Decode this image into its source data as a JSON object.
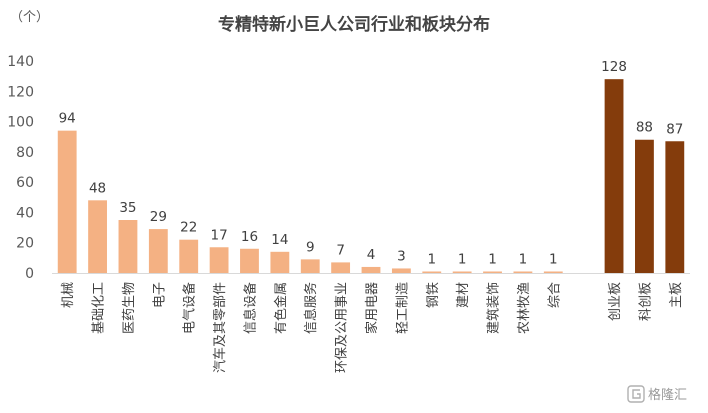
{
  "chart_data": {
    "type": "bar",
    "title": "专精特新小巨人公司行业和板块分布",
    "unit_label": "（个）",
    "ylim": [
      0,
      140
    ],
    "yticks": [
      0,
      20,
      40,
      60,
      80,
      100,
      120,
      140
    ],
    "grid": false,
    "legend": "none",
    "series": [
      {
        "categories": [
          "机械",
          "基础化工",
          "医药生物",
          "电子",
          "电气设备",
          "汽车及其零部件",
          "信息设备",
          "有色金属",
          "信息服务",
          "环保及公用事业",
          "家用电器",
          "轻工制造",
          "钢铁",
          "建材",
          "建筑装饰",
          "农林牧渔",
          "综合"
        ],
        "values": [
          94,
          48,
          35,
          29,
          22,
          17,
          16,
          14,
          9,
          7,
          4,
          3,
          1,
          1,
          1,
          1,
          1
        ],
        "color": "#F4B183"
      },
      {
        "categories": [
          "创业板",
          "科创板",
          "主板"
        ],
        "values": [
          128,
          88,
          87
        ],
        "color": "#843C0C"
      }
    ]
  },
  "watermark": {
    "text": "格隆汇"
  }
}
